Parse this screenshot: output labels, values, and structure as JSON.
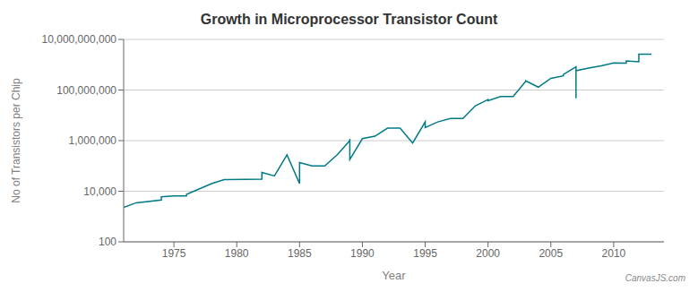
{
  "chart_data": {
    "type": "line",
    "title": "Growth in Microprocessor Transistor Count",
    "xlabel": "Year",
    "ylabel": "No of Transistors per Chip",
    "annotations": [
      "CanvasJS.com"
    ],
    "color": "#007A87",
    "log": "y",
    "grid": true,
    "xlim": [
      1971,
      2014
    ],
    "xticks": [
      1975,
      1980,
      1985,
      1990,
      1995,
      2000,
      2005,
      2010
    ],
    "ylim": [
      100,
      10000000000
    ],
    "yticks": [
      {
        "value": 100,
        "label": "100"
      },
      {
        "value": 10000,
        "label": "10,000"
      },
      {
        "value": 1000000,
        "label": "1,000,000"
      },
      {
        "value": 100000000,
        "label": "100,000,000"
      },
      {
        "value": 10000000000,
        "label": "10,000,000,000"
      }
    ],
    "x": [
      1971,
      1972,
      1974,
      1974,
      1975,
      1976,
      1976,
      1978,
      1979,
      1982,
      1982,
      1983,
      1984,
      1985,
      1985,
      1986,
      1987,
      1988,
      1989,
      1989,
      1989,
      1989,
      1990,
      1991,
      1992,
      1993,
      1994,
      1995,
      1995,
      1996,
      1997,
      1998,
      1999,
      2000,
      2000,
      2001,
      2002,
      2003,
      2003,
      2004,
      2005,
      2006,
      2006,
      2007,
      2007,
      2007,
      2007,
      2008,
      2009,
      2010,
      2011,
      2011,
      2012,
      2012,
      2013
    ],
    "values": [
      2300,
      3500,
      4500,
      6000,
      6500,
      6500,
      7500,
      20000,
      29000,
      30000,
      55000,
      40000,
      275000,
      20000,
      135000,
      100000,
      100000,
      275000,
      1000000,
      1180235,
      800000,
      180000,
      1200000,
      1500000,
      3100000,
      3100000,
      800000,
      5500000,
      3300000,
      5500000,
      7500000,
      7500000,
      24000000,
      42000000,
      37500000,
      55000000,
      55000000,
      220000000,
      230000000,
      130000000,
      290000000,
      362000000,
      410000000,
      820000000,
      153000000,
      47000000,
      582000000,
      731000000,
      904000000,
      1170000000,
      1160000000,
      1400000000,
      1300000000,
      2600000000,
      2600000000
    ]
  }
}
